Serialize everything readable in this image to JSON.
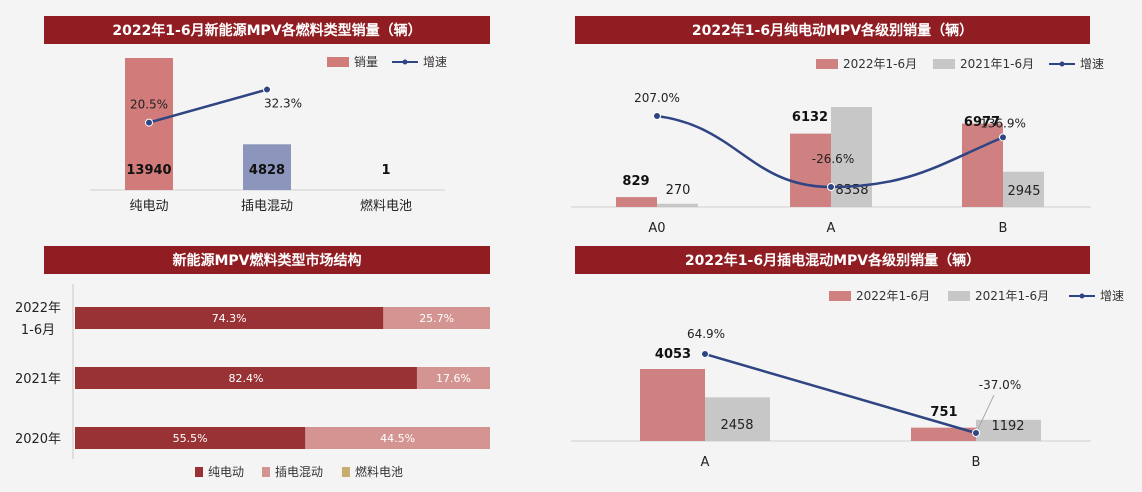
{
  "colors": {
    "title_bg": "#8f1d22",
    "ev_bar": "#d27b7b",
    "phev_bar_c1": "#8c96bd",
    "bar_2022": "#cf8181",
    "bar_2021": "#c7c7c7",
    "growth_line": "#2f4483",
    "struct_ev": "#993235",
    "struct_phev": "#d49492",
    "struct_fc": "#c9ac6f"
  },
  "chart_data": [
    {
      "id": "fuel_type_sales",
      "type": "bar",
      "title": "2022年1-6月新能源MPV各燃料类型销量（辆）",
      "categories": [
        "纯电动",
        "插电混动",
        "燃料电池"
      ],
      "series": [
        {
          "name": "销量",
          "values": [
            13940,
            4828,
            1
          ]
        },
        {
          "name": "增速",
          "type": "line",
          "values": [
            "20.5%",
            "32.3%",
            null
          ],
          "numeric": [
            20.5,
            32.3,
            null
          ]
        }
      ],
      "legend": [
        "销量",
        "增速"
      ]
    },
    {
      "id": "ev_level_sales",
      "type": "bar",
      "title": "2022年1-6月纯电动MPV各级别销量（辆）",
      "categories": [
        "A0",
        "A",
        "B"
      ],
      "series": [
        {
          "name": "2022年1-6月",
          "values": [
            829,
            6132,
            6977
          ]
        },
        {
          "name": "2021年1-6月",
          "values": [
            270,
            8358,
            2945
          ]
        },
        {
          "name": "增速",
          "type": "line",
          "values": [
            "207.0%",
            "-26.6%",
            "136.9%"
          ],
          "numeric": [
            207.0,
            -26.6,
            136.9
          ]
        }
      ],
      "legend": [
        "2022年1-6月",
        "2021年1-6月",
        "增速"
      ]
    },
    {
      "id": "market_structure",
      "type": "bar",
      "orientation": "horizontal-stacked",
      "title": "新能源MPV燃料类型市场结构",
      "categories": [
        [
          "2022年",
          "1-6月"
        ],
        [
          "2021年"
        ],
        [
          "2020年"
        ]
      ],
      "series": [
        {
          "name": "纯电动",
          "values": [
            74.3,
            82.4,
            55.5
          ],
          "labels": [
            "74.3%",
            "82.4%",
            "55.5%"
          ]
        },
        {
          "name": "插电混动",
          "values": [
            25.7,
            17.6,
            44.5
          ],
          "labels": [
            "25.7%",
            "17.6%",
            "44.5%"
          ]
        },
        {
          "name": "燃料电池",
          "values": [
            0,
            0,
            0
          ]
        }
      ],
      "legend": [
        "纯电动",
        "插电混动",
        "燃料电池"
      ]
    },
    {
      "id": "phev_level_sales",
      "type": "bar",
      "title": "2022年1-6月插电混动MPV各级别销量（辆）",
      "categories": [
        "A",
        "B"
      ],
      "series": [
        {
          "name": "2022年1-6月",
          "values": [
            4053,
            751
          ]
        },
        {
          "name": "2021年1-6月",
          "values": [
            2458,
            1192
          ]
        },
        {
          "name": "增速",
          "type": "line",
          "values": [
            "64.9%",
            "-37.0%"
          ],
          "numeric": [
            64.9,
            -37.0
          ]
        }
      ],
      "legend": [
        "2022年1-6月",
        "2021年1-6月",
        "增速"
      ]
    }
  ]
}
